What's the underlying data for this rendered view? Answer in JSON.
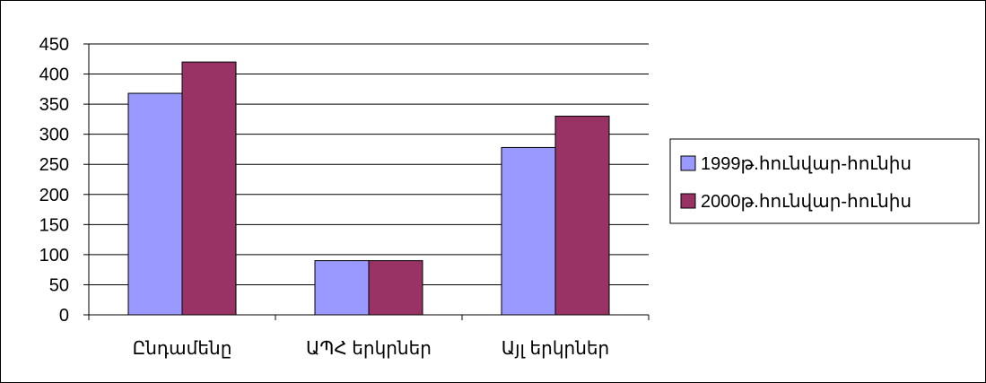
{
  "chart_data": {
    "type": "bar",
    "categories": [
      "Ընդամենը",
      "ԱՊՀ երկրներ",
      "Այլ երկրներ"
    ],
    "series": [
      {
        "name": "1999թ.հունվար-հունիս",
        "values": [
          368,
          90,
          278
        ],
        "color": "#9999ff"
      },
      {
        "name": "2000թ.հունվար-հունիս",
        "values": [
          420,
          90,
          330
        ],
        "color": "#993366"
      }
    ],
    "ylim": [
      0,
      450
    ],
    "yticks": [
      0,
      50,
      100,
      150,
      200,
      250,
      300,
      350,
      400,
      450
    ],
    "grid": true,
    "legend_position": "right"
  }
}
